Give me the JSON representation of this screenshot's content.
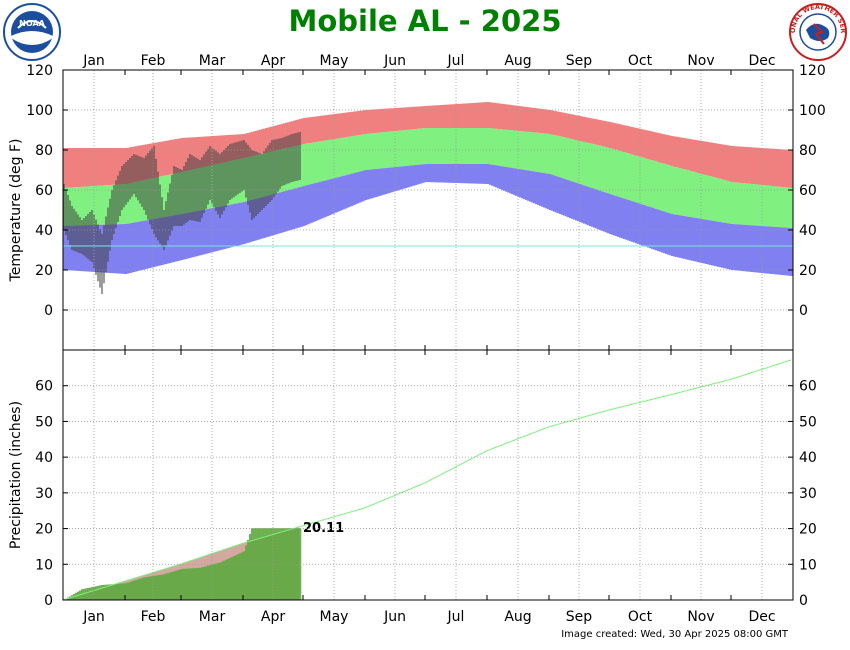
{
  "title": "Mobile AL - 2025",
  "footer": "Image created: Wed, 30 Apr 2025 08:00 GMT",
  "logos": {
    "noaa": {
      "icon": "noaa-logo",
      "text": "NOAA"
    },
    "nws": {
      "icon": "nws-logo",
      "text": "NATIONAL WEATHER SERVICE"
    }
  },
  "months": [
    "Jan",
    "Feb",
    "Mar",
    "Apr",
    "May",
    "Jun",
    "Jul",
    "Aug",
    "Sep",
    "Oct",
    "Nov",
    "Dec"
  ],
  "chart_data": [
    {
      "type": "bar",
      "ylabel": "Temperature (deg F)",
      "ylim": [
        -20,
        120
      ],
      "yticks": [
        0,
        20,
        40,
        60,
        80,
        100,
        120
      ],
      "x_axis": "day of year 2025",
      "grid": true,
      "freezing_line": 32,
      "colors": {
        "record": "#f08080",
        "normal": "#80f080",
        "low_record": "#8080f0",
        "observed": "#404040",
        "freeze_line": "#80e0e0"
      },
      "normal_high": [
        {
          "date": "Jan 1",
          "value": 61
        },
        {
          "date": "Feb 1",
          "value": 63
        },
        {
          "date": "Mar 1",
          "value": 69
        },
        {
          "date": "Apr 1",
          "value": 76
        },
        {
          "date": "May 1",
          "value": 83
        },
        {
          "date": "Jun 1",
          "value": 88
        },
        {
          "date": "Jul 1",
          "value": 91
        },
        {
          "date": "Aug 1",
          "value": 91
        },
        {
          "date": "Sep 1",
          "value": 88
        },
        {
          "date": "Oct 1",
          "value": 81
        },
        {
          "date": "Nov 1",
          "value": 72
        },
        {
          "date": "Dec 1",
          "value": 64
        },
        {
          "date": "Dec 31",
          "value": 61
        }
      ],
      "normal_low": [
        {
          "date": "Jan 1",
          "value": 42
        },
        {
          "date": "Feb 1",
          "value": 43
        },
        {
          "date": "Mar 1",
          "value": 48
        },
        {
          "date": "Apr 1",
          "value": 54
        },
        {
          "date": "May 1",
          "value": 62
        },
        {
          "date": "Jun 1",
          "value": 70
        },
        {
          "date": "Jul 1",
          "value": 73
        },
        {
          "date": "Aug 1",
          "value": 73
        },
        {
          "date": "Sep 1",
          "value": 68
        },
        {
          "date": "Oct 1",
          "value": 58
        },
        {
          "date": "Nov 1",
          "value": 48
        },
        {
          "date": "Dec 1",
          "value": 43
        },
        {
          "date": "Dec 31",
          "value": 41
        }
      ],
      "record_high": [
        {
          "date": "Jan 1",
          "value": 81
        },
        {
          "date": "Feb 1",
          "value": 81
        },
        {
          "date": "Mar 1",
          "value": 86
        },
        {
          "date": "Apr 1",
          "value": 88
        },
        {
          "date": "May 1",
          "value": 96
        },
        {
          "date": "Jun 1",
          "value": 100
        },
        {
          "date": "Jul 1",
          "value": 102
        },
        {
          "date": "Aug 1",
          "value": 104
        },
        {
          "date": "Sep 1",
          "value": 100
        },
        {
          "date": "Oct 1",
          "value": 94
        },
        {
          "date": "Nov 1",
          "value": 87
        },
        {
          "date": "Dec 1",
          "value": 82
        },
        {
          "date": "Dec 31",
          "value": 80
        }
      ],
      "record_low": [
        {
          "date": "Jan 1",
          "value": 20
        },
        {
          "date": "Feb 1",
          "value": 18
        },
        {
          "date": "Mar 1",
          "value": 25
        },
        {
          "date": "Apr 1",
          "value": 33
        },
        {
          "date": "May 1",
          "value": 42
        },
        {
          "date": "Jun 1",
          "value": 55
        },
        {
          "date": "Jul 1",
          "value": 64
        },
        {
          "date": "Aug 1",
          "value": 63
        },
        {
          "date": "Sep 1",
          "value": 50
        },
        {
          "date": "Oct 1",
          "value": 38
        },
        {
          "date": "Nov 1",
          "value": 27
        },
        {
          "date": "Dec 1",
          "value": 20
        },
        {
          "date": "Dec 31",
          "value": 17
        }
      ],
      "observed_2025": [
        {
          "date": "Jan 1",
          "low": 40,
          "high": 63
        },
        {
          "date": "Jan 5",
          "low": 30,
          "high": 52
        },
        {
          "date": "Jan 10",
          "low": 28,
          "high": 45
        },
        {
          "date": "Jan 15",
          "low": 24,
          "high": 50
        },
        {
          "date": "Jan 20",
          "low": 8,
          "high": 38
        },
        {
          "date": "Jan 25",
          "low": 35,
          "high": 60
        },
        {
          "date": "Jan 30",
          "low": 50,
          "high": 72
        },
        {
          "date": "Feb 5",
          "low": 58,
          "high": 78
        },
        {
          "date": "Feb 10",
          "low": 50,
          "high": 76
        },
        {
          "date": "Feb 15",
          "low": 38,
          "high": 82
        },
        {
          "date": "Feb 20",
          "low": 30,
          "high": 50
        },
        {
          "date": "Feb 25",
          "low": 42,
          "high": 72
        },
        {
          "date": "Mar 1",
          "low": 42,
          "high": 70
        },
        {
          "date": "Mar 5",
          "low": 45,
          "high": 78
        },
        {
          "date": "Mar 10",
          "low": 44,
          "high": 75
        },
        {
          "date": "Mar 15",
          "low": 55,
          "high": 82
        },
        {
          "date": "Mar 20",
          "low": 46,
          "high": 78
        },
        {
          "date": "Mar 25",
          "low": 55,
          "high": 83
        },
        {
          "date": "Apr 1",
          "low": 60,
          "high": 85
        },
        {
          "date": "Apr 5",
          "low": 45,
          "high": 80
        },
        {
          "date": "Apr 10",
          "low": 50,
          "high": 78
        },
        {
          "date": "Apr 15",
          "low": 55,
          "high": 85
        },
        {
          "date": "Apr 20",
          "low": 62,
          "high": 86
        },
        {
          "date": "Apr 25",
          "low": 64,
          "high": 88
        },
        {
          "date": "Apr 29",
          "low": 65,
          "high": 89
        }
      ]
    },
    {
      "type": "area",
      "ylabel": "Precipitation (inches)",
      "ylim": [
        0,
        70
      ],
      "yticks": [
        0,
        10,
        20,
        30,
        40,
        50,
        60
      ],
      "grid": true,
      "colors": {
        "normal_line": "#80f080",
        "normal_area": "#d2a8a0",
        "observed": "#60a840"
      },
      "normal_cumulative": [
        {
          "date": "Jan 1",
          "value": 0
        },
        {
          "date": "Feb 1",
          "value": 5.3
        },
        {
          "date": "Mar 1",
          "value": 10.1
        },
        {
          "date": "Apr 1",
          "value": 15.9
        },
        {
          "date": "May 1",
          "value": 20.8
        },
        {
          "date": "Jun 1",
          "value": 25.8
        },
        {
          "date": "Jul 1",
          "value": 32.8
        },
        {
          "date": "Aug 1",
          "value": 41.8
        },
        {
          "date": "Sep 1",
          "value": 48.5
        },
        {
          "date": "Oct 1",
          "value": 53.2
        },
        {
          "date": "Nov 1",
          "value": 57.5
        },
        {
          "date": "Dec 1",
          "value": 61.8
        },
        {
          "date": "Dec 31",
          "value": 67.2
        }
      ],
      "observed_cumulative": [
        {
          "date": "Jan 1",
          "value": 0
        },
        {
          "date": "Jan 10",
          "value": 3.0
        },
        {
          "date": "Jan 20",
          "value": 4.2
        },
        {
          "date": "Feb 1",
          "value": 4.7
        },
        {
          "date": "Feb 10",
          "value": 6.3
        },
        {
          "date": "Feb 20",
          "value": 7.2
        },
        {
          "date": "Mar 1",
          "value": 8.7
        },
        {
          "date": "Mar 10",
          "value": 9.0
        },
        {
          "date": "Mar 20",
          "value": 10.5
        },
        {
          "date": "Apr 1",
          "value": 13.6
        },
        {
          "date": "Apr 5",
          "value": 20.1
        },
        {
          "date": "Apr 29",
          "value": 20.11
        }
      ],
      "current_label": "20.11"
    }
  ]
}
